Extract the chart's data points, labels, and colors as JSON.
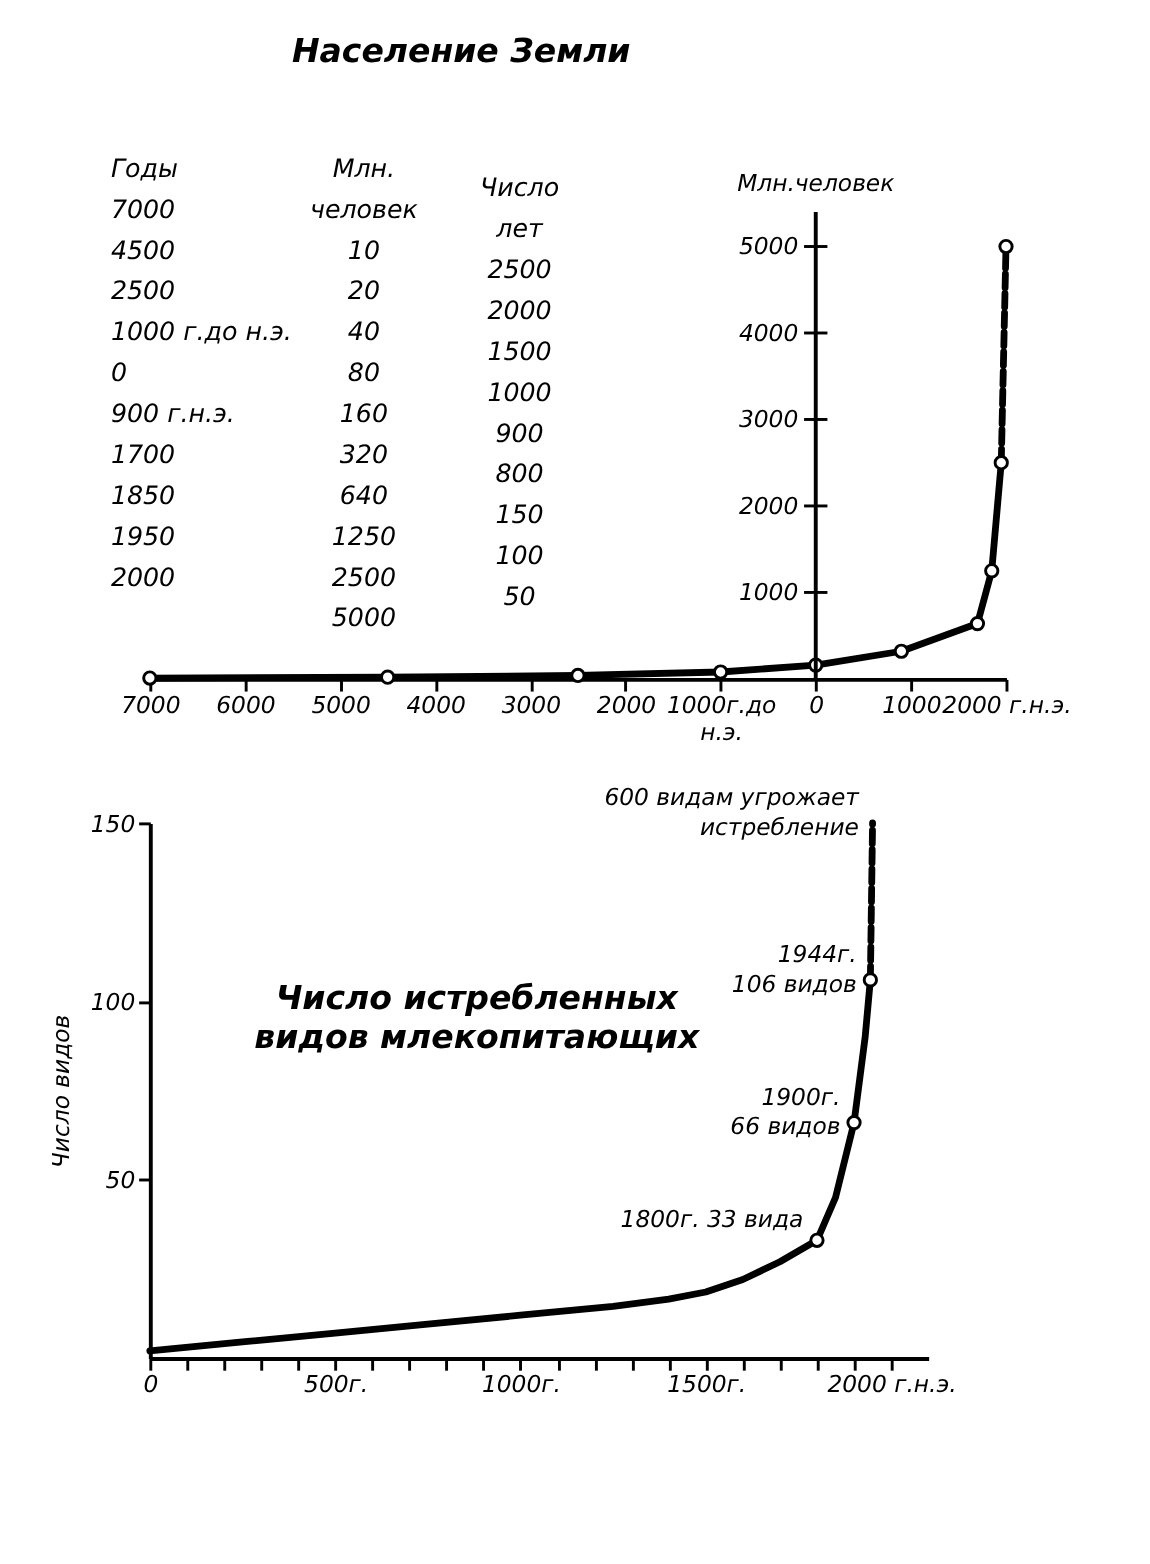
{
  "chart_data": [
    {
      "type": "line",
      "title": "Население Земли",
      "ylabel": "Млн.человек",
      "xlim": [
        -7000,
        2000
      ],
      "ylim": [
        0,
        5400
      ],
      "xticks": [
        {
          "value": -7000,
          "label": "7000"
        },
        {
          "value": -6000,
          "label": "6000"
        },
        {
          "value": -5000,
          "label": "5000"
        },
        {
          "value": -4000,
          "label": "4000"
        },
        {
          "value": -3000,
          "label": "3000"
        },
        {
          "value": -2000,
          "label": "2000"
        },
        {
          "value": -1000,
          "label": "1000г.до н.э."
        },
        0,
        1000,
        {
          "value": 2000,
          "label": "2000 г.н.э."
        }
      ],
      "yticks": [
        1000,
        2000,
        3000,
        4000,
        5000
      ],
      "grid": false,
      "series": [
        {
          "type": "line",
          "color": "#000000",
          "line_style": "solid",
          "x": [
            -7000,
            -4500,
            -2500,
            -1000,
            0,
            900,
            1700,
            1850,
            1950
          ],
          "values": [
            10,
            20,
            40,
            80,
            160,
            320,
            640,
            1250,
            2500
          ]
        },
        {
          "type": "line",
          "color": "#000000",
          "line_style": "dashed",
          "x": [
            1950,
            2000
          ],
          "values": [
            2500,
            5000
          ]
        },
        {
          "type": "scatter",
          "color": "#000000",
          "marker": "circle",
          "x": [
            -7000,
            -4500,
            -2500,
            -1000,
            0,
            900,
            1700,
            1850,
            1950,
            2000
          ],
          "values": [
            10,
            20,
            40,
            80,
            160,
            320,
            640,
            1250,
            2500,
            5000
          ]
        }
      ],
      "annotations": [
        "Годы\n\n7000\n4500\n2500\n1000 г.до н.э.\n0\n900 г.н.э.\n1700\n1850\n1950\n2000",
        "Млн.\nчеловек\n10\n20\n40\n80\n160\n320\n640\n1250\n2500\n5000",
        "Число\nлет\n2500\n2000\n1500\n1000\n900\n800\n150\n100\n50"
      ]
    },
    {
      "type": "line",
      "title": "Число истребленных видов млекопитающих",
      "ylabel": "Число видов",
      "xlim": [
        0,
        2100
      ],
      "ylim": [
        0,
        150
      ],
      "xticks": [
        0,
        {
          "value": 100,
          "label": null
        },
        {
          "value": 200,
          "label": null
        },
        {
          "value": 300,
          "label": null
        },
        {
          "value": 400,
          "label": null
        },
        {
          "value": 500,
          "label": "500г."
        },
        {
          "value": 600,
          "label": null
        },
        {
          "value": 700,
          "label": null
        },
        {
          "value": 800,
          "label": null
        },
        {
          "value": 900,
          "label": null
        },
        {
          "value": 1000,
          "label": "1000г."
        },
        {
          "value": 1100,
          "label": null
        },
        {
          "value": 1200,
          "label": null
        },
        {
          "value": 1300,
          "label": null
        },
        {
          "value": 1400,
          "label": null
        },
        {
          "value": 1500,
          "label": "1500г."
        },
        {
          "value": 1600,
          "label": null
        },
        {
          "value": 1700,
          "label": null
        },
        {
          "value": 1800,
          "label": null
        },
        {
          "value": 1900,
          "label": null
        },
        {
          "value": 2000,
          "label": "2000 г.н.э."
        }
      ],
      "yticks": [
        50,
        100,
        150
      ],
      "grid": false,
      "series": [
        {
          "type": "line",
          "color": "#000000",
          "line_style": "solid",
          "x": [
            0,
            250,
            500,
            750,
            1000,
            1250,
            1400,
            1500,
            1600,
            1700,
            1750,
            1800,
            1850,
            1900,
            1930,
            1944
          ],
          "values": [
            2,
            4.5,
            7,
            9.5,
            12,
            14.5,
            16.5,
            18.5,
            22,
            27,
            30,
            33,
            45,
            66,
            90,
            106
          ]
        },
        {
          "type": "line",
          "color": "#000000",
          "line_style": "dashed",
          "x": [
            1944,
            1950
          ],
          "values": [
            106,
            150
          ]
        },
        {
          "type": "scatter",
          "color": "#000000",
          "marker": "circle",
          "x": [
            1800,
            1900,
            1944
          ],
          "values": [
            33,
            66,
            106
          ]
        }
      ],
      "annotations": [
        {
          "text": "1800г. 33 вида",
          "x": 1800,
          "y": 33
        },
        {
          "text": "1900г. 66 видов",
          "x": 1900,
          "y": 66
        },
        {
          "text": "1944г. 106 видов",
          "x": 1944,
          "y": 106
        },
        {
          "text": "600 видам угрожает истребление",
          "x": 1950,
          "y": 150
        }
      ]
    }
  ]
}
